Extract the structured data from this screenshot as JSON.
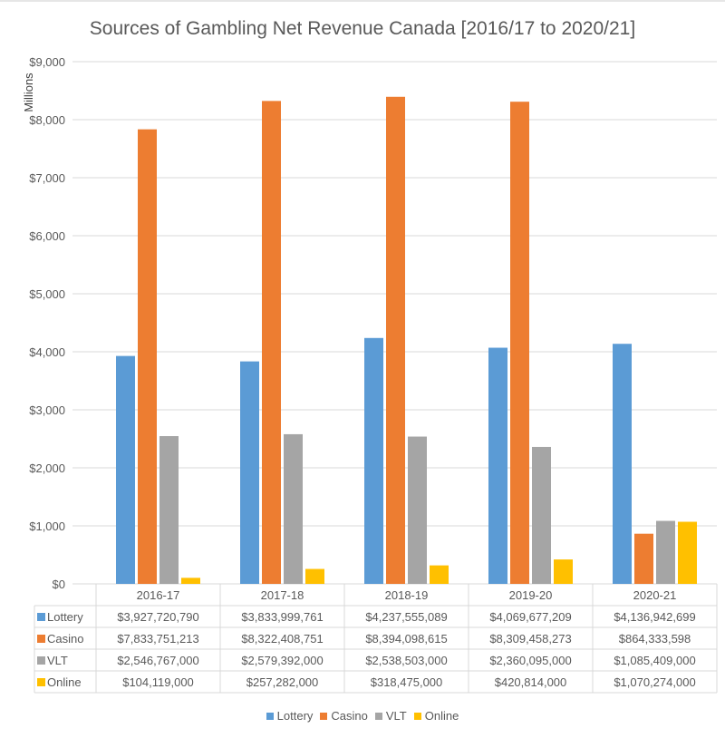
{
  "chart_data": {
    "type": "bar",
    "title": "Sources of Gambling Net Revenue Canada [2016/17 to 2020/21]",
    "ylabel": "Millions",
    "xlabel": "",
    "ylim": [
      0,
      9000
    ],
    "yticks": [
      "$0",
      "$1,000",
      "$2,000",
      "$3,000",
      "$4,000",
      "$5,000",
      "$6,000",
      "$7,000",
      "$8,000",
      "$9,000"
    ],
    "grid": true,
    "legend": "bottom",
    "categories": [
      "2016-17",
      "2017-18",
      "2018-19",
      "2019-20",
      "2020-21"
    ],
    "series": [
      {
        "name": "Lottery",
        "color": "#5b9bd5",
        "values": [
          3927.72079,
          3833.999761,
          4237.555089,
          4069.677209,
          4136.942699
        ],
        "labels": [
          "$3,927,720,790",
          "$3,833,999,761",
          "$4,237,555,089",
          "$4,069,677,209",
          "$4,136,942,699"
        ]
      },
      {
        "name": "Casino",
        "color": "#ed7d31",
        "values": [
          7833.751213,
          8322.408751,
          8394.098615,
          8309.458273,
          864.333598
        ],
        "labels": [
          "$7,833,751,213",
          "$8,322,408,751",
          "$8,394,098,615",
          "$8,309,458,273",
          "$864,333,598"
        ]
      },
      {
        "name": "VLT",
        "color": "#a5a5a5",
        "values": [
          2546.767,
          2579.392,
          2538.503,
          2360.095,
          1085.409
        ],
        "labels": [
          "$2,546,767,000",
          "$2,579,392,000",
          "$2,538,503,000",
          "$2,360,095,000",
          "$1,085,409,000"
        ]
      },
      {
        "name": "Online",
        "color": "#ffc000",
        "values": [
          104.119,
          257.282,
          318.475,
          420.814,
          1070.274
        ],
        "labels": [
          "$104,119,000",
          "$257,282,000",
          "$318,475,000",
          "$420,814,000",
          "$1,070,274,000"
        ]
      }
    ]
  }
}
